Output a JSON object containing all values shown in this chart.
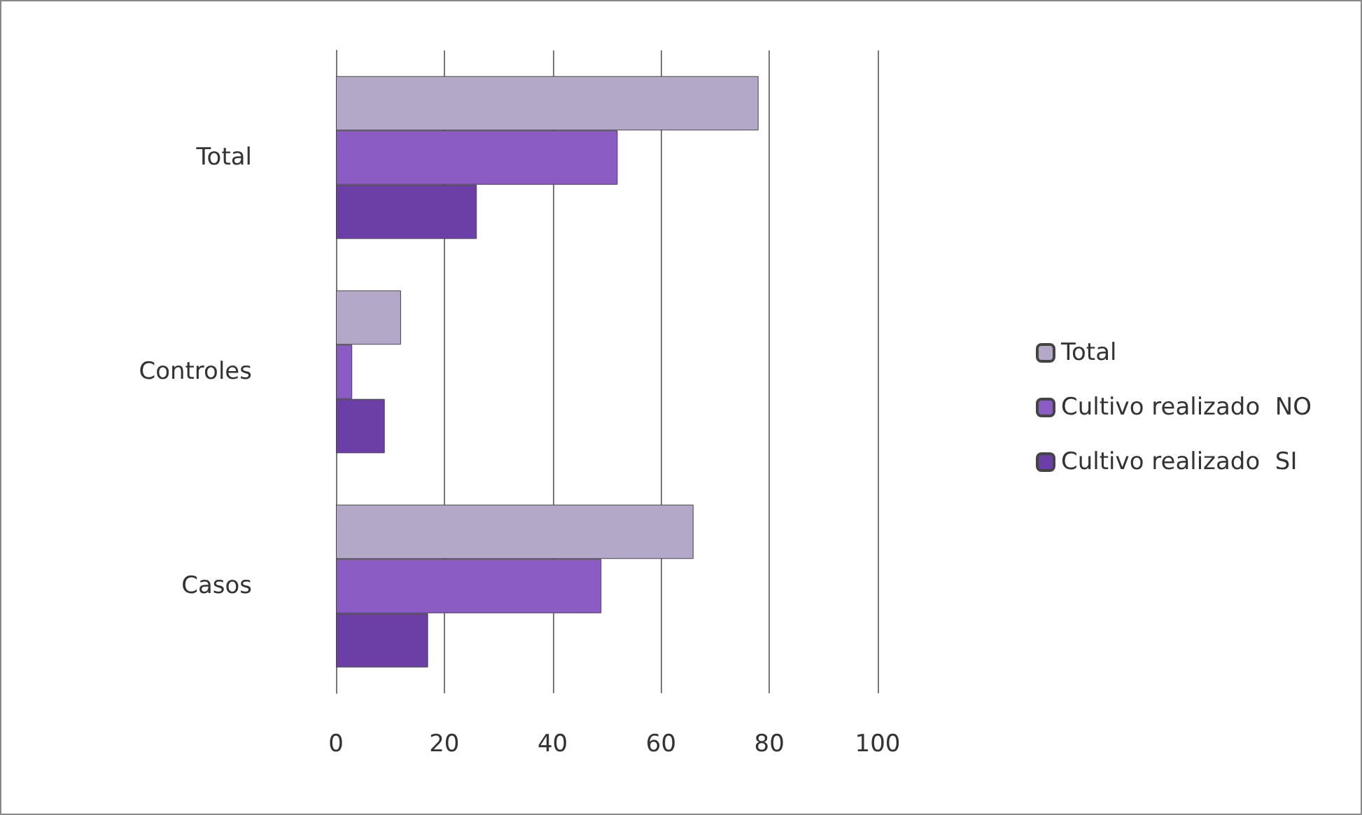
{
  "chart_data": {
    "type": "bar",
    "orientation": "horizontal",
    "categories": [
      "Total",
      "Controles",
      "Casos"
    ],
    "series": [
      {
        "name": "Total",
        "color": "#b4a8c8",
        "values": [
          78,
          12,
          66
        ]
      },
      {
        "name": "Cultivo realizado  NO",
        "color": "#8a5cc4",
        "values": [
          52,
          3,
          49
        ]
      },
      {
        "name": "Cultivo realizado  SI",
        "color": "#6b3fa5",
        "values": [
          26,
          9,
          17
        ]
      }
    ],
    "xlim": [
      0,
      100
    ],
    "xticks": [
      0,
      20,
      40,
      60,
      80,
      100
    ],
    "grid": "x",
    "legend": "right"
  }
}
